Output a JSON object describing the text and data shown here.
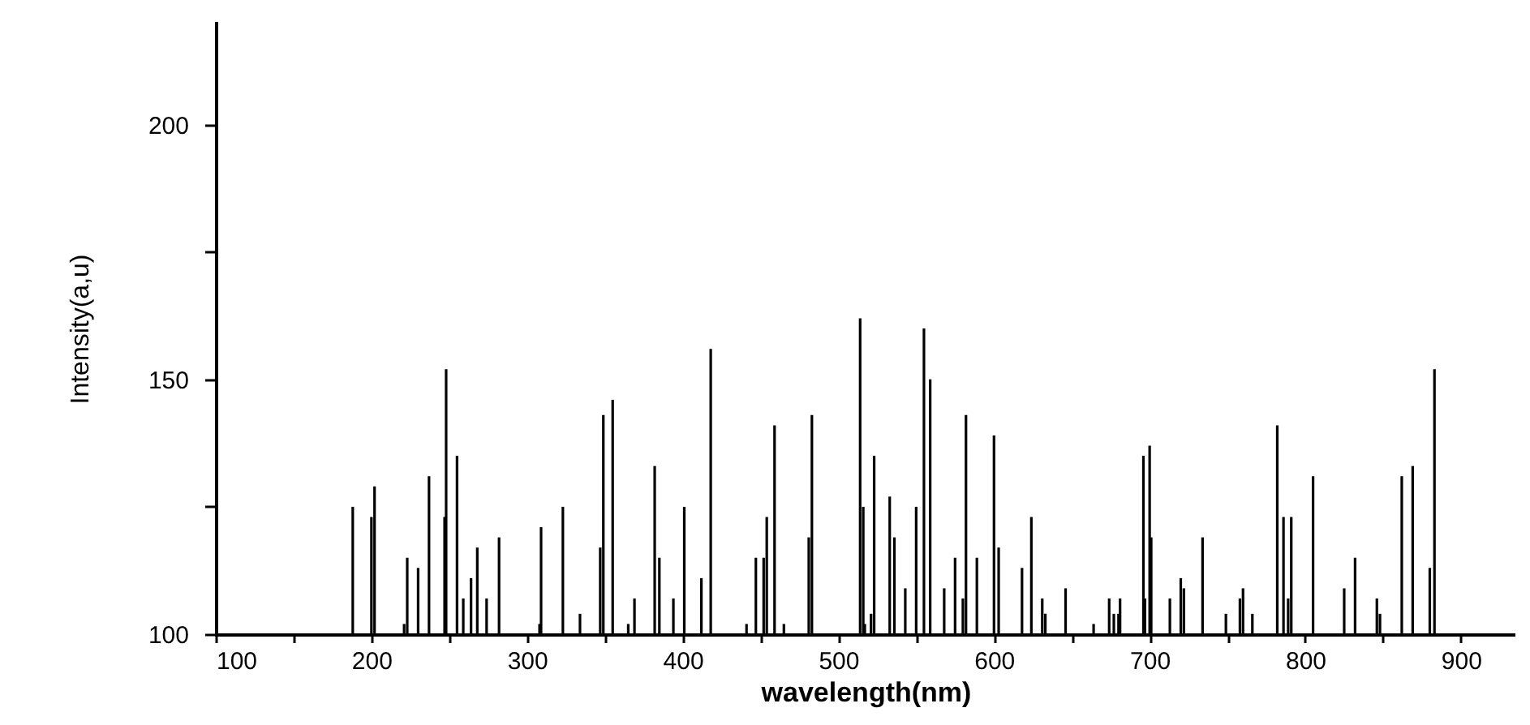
{
  "chart_data": {
    "type": "bar",
    "xlabel": "wavelength(nm)",
    "ylabel": "Intensity(a,u)",
    "color": "#000000",
    "x": [
      188,
      200,
      202,
      221,
      223,
      230,
      237,
      247,
      248,
      255,
      259,
      264,
      268,
      274,
      282,
      308,
      309,
      323,
      334,
      347,
      349,
      355,
      365,
      369,
      382,
      385,
      394,
      401,
      412,
      418,
      441,
      447,
      452,
      454,
      459,
      465,
      481,
      483,
      514,
      516,
      517,
      521,
      523,
      533,
      536,
      543,
      550,
      555,
      559,
      568,
      575,
      580,
      582,
      589,
      600,
      603,
      618,
      624,
      631,
      633,
      646,
      664,
      674,
      677,
      680,
      681,
      696,
      697,
      700,
      701,
      713,
      720,
      722,
      734,
      749,
      758,
      760,
      766,
      782,
      786,
      789,
      791,
      805,
      825,
      832,
      846,
      848,
      862,
      869,
      880,
      883
    ],
    "values": [
      125,
      123,
      129,
      102,
      115,
      113,
      131,
      123,
      152,
      135,
      107,
      111,
      117,
      107,
      119,
      102,
      121,
      125,
      104,
      117,
      143,
      146,
      102,
      107,
      133,
      115,
      107,
      125,
      111,
      156,
      102,
      115,
      115,
      123,
      141,
      102,
      119,
      143,
      162,
      125,
      102,
      104,
      135,
      127,
      119,
      109,
      125,
      160,
      150,
      109,
      115,
      107,
      143,
      115,
      139,
      117,
      113,
      123,
      107,
      104,
      109,
      102,
      107,
      104,
      104,
      107,
      135,
      107,
      137,
      119,
      107,
      111,
      109,
      119,
      104,
      107,
      109,
      104,
      141,
      123,
      107,
      123,
      131,
      109,
      115,
      107,
      104,
      131,
      133,
      113,
      152
    ],
    "xlim": [
      100,
      935
    ],
    "ylim": [
      100,
      220
    ],
    "xticks": [
      100,
      {
        "value": 150,
        "label": null
      },
      200,
      {
        "value": 250,
        "label": null
      },
      300,
      {
        "value": 350,
        "label": null
      },
      400,
      {
        "value": 450,
        "label": null
      },
      500,
      {
        "value": 550,
        "label": null
      },
      600,
      {
        "value": 650,
        "label": null
      },
      700,
      {
        "value": 750,
        "label": null
      },
      800,
      {
        "value": 850,
        "label": null
      },
      900
    ],
    "yticks": [
      100,
      {
        "value": 125,
        "label": null
      },
      150,
      {
        "value": 175,
        "label": null
      },
      200
    ],
    "grid": false
  }
}
